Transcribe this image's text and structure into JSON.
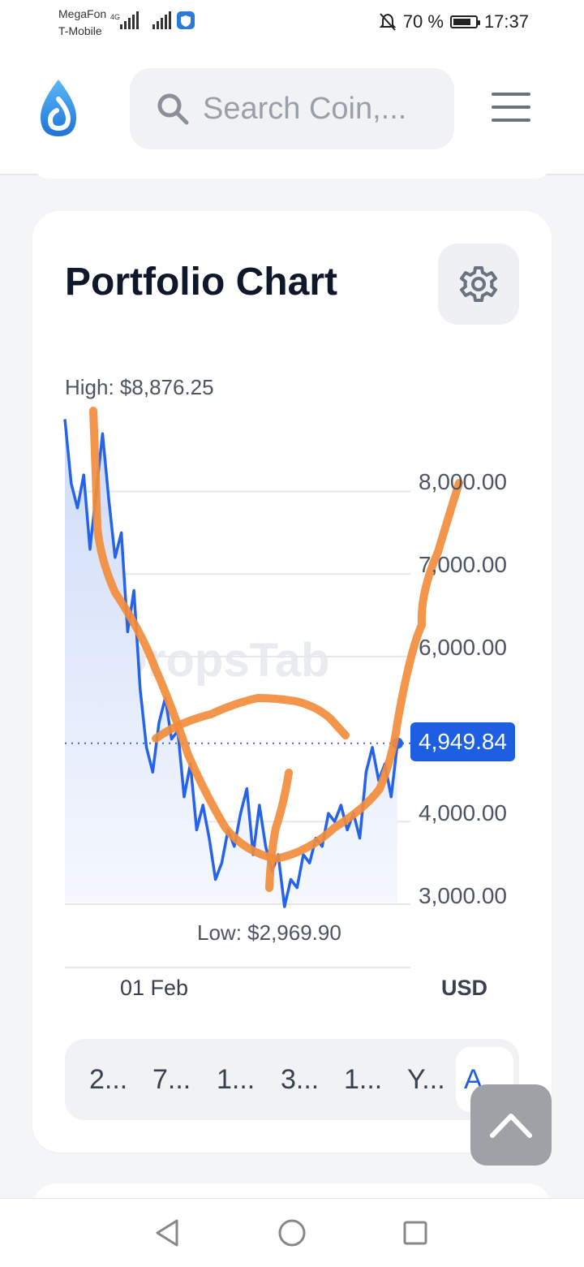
{
  "status_bar": {
    "carrier_1": "MegaFon",
    "carrier_2": "T-Mobile",
    "network": "4G",
    "battery_percent": "70 %",
    "time": "17:37"
  },
  "header": {
    "logo_icon": "dropstab-drop-logo",
    "search_placeholder": "Search Coin,...",
    "menu_icon": "hamburger-menu-icon"
  },
  "portfolio_chart": {
    "title": "Portfolio Chart",
    "settings_icon": "gear-icon",
    "high_label": "High: $8,876.25",
    "low_label": "Low: $2,969.90",
    "current_value": "4,949.84",
    "y_ticks": [
      "8,000.00",
      "7,000.00",
      "6,000.00",
      "4,000.00",
      "3,000.00"
    ],
    "x_tick": "01 Feb",
    "currency": "USD",
    "watermark": "DropsTab",
    "periods": [
      "2...",
      "7...",
      "1...",
      "3...",
      "1...",
      "Y...",
      "A..."
    ],
    "active_period_index": 6,
    "line_color": "#2563eb",
    "annotation_color": "#f28c3c"
  },
  "chart_data": {
    "type": "line",
    "title": "",
    "xlabel": "",
    "ylabel": "",
    "x_tick_labels": [
      "01 Feb"
    ],
    "ylim": [
      2700,
      9100
    ],
    "y_ticks": [
      3000,
      4000,
      6000,
      7000,
      8000
    ],
    "high": 8876.25,
    "low": 2969.9,
    "current": 4949.84,
    "series": [
      {
        "values": [
          8876,
          8100,
          7800,
          8200,
          7300,
          8000,
          8700,
          7900,
          7200,
          7500,
          6300,
          6800,
          5600,
          4900,
          4600,
          5200,
          5500,
          5000,
          5100,
          4300,
          4700,
          3900,
          4200,
          3800,
          3300,
          3500,
          3900,
          3700,
          4100,
          4400,
          3600,
          4200,
          3700,
          3400,
          3600,
          2970,
          3300,
          3200,
          3600,
          3500,
          3800,
          3700,
          4100,
          4000,
          4200,
          3900,
          4100,
          3800,
          4600,
          4900,
          4500,
          4700,
          4300,
          4949.84
        ]
      }
    ]
  }
}
